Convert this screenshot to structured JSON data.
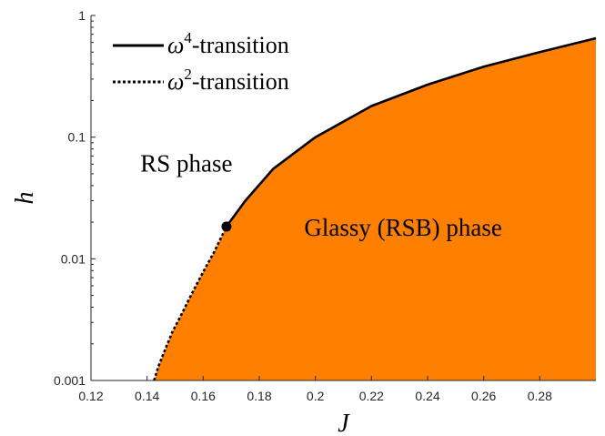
{
  "chart_data": {
    "type": "area",
    "xlabel": "J",
    "ylabel": "h",
    "xlim": [
      0.12,
      0.3
    ],
    "ylim": [
      0.001,
      1
    ],
    "y_scale": "log",
    "grid": false,
    "legend_position": "top-left",
    "x_ticks": [
      "0.12",
      "0.14",
      "0.16",
      "0.18",
      "0.2",
      "0.22",
      "0.24",
      "0.26",
      "0.28"
    ],
    "y_ticks": [
      "0.001",
      "0.01",
      "0.1",
      "1"
    ],
    "fill_color": "#ff8000",
    "series": [
      {
        "name": "ω⁴-transition",
        "legend_base": "ω",
        "legend_sup": "4",
        "legend_suffix": "-transition",
        "style": "solid",
        "x": [
          0.1683,
          0.175,
          0.185,
          0.2,
          0.22,
          0.24,
          0.26,
          0.28,
          0.3
        ],
        "y": [
          0.0184,
          0.03,
          0.055,
          0.1,
          0.18,
          0.27,
          0.38,
          0.5,
          0.65
        ]
      },
      {
        "name": "ω²-transition",
        "legend_base": "ω",
        "legend_sup": "2",
        "legend_suffix": "-transition",
        "style": "dotted",
        "x": [
          0.1425,
          0.144,
          0.146,
          0.149,
          0.152,
          0.156,
          0.16,
          0.164,
          0.1683
        ],
        "y": [
          0.001,
          0.0013,
          0.0017,
          0.0025,
          0.0034,
          0.0052,
          0.0078,
          0.0115,
          0.0184
        ]
      }
    ],
    "marker_point": {
      "x": 0.1683,
      "y": 0.0184
    },
    "annotations": [
      {
        "text": "RS phase",
        "x": 0.155,
        "y": 0.052
      },
      {
        "text": "Glassy (RSB) phase",
        "x": 0.23,
        "y": 0.016
      }
    ]
  }
}
